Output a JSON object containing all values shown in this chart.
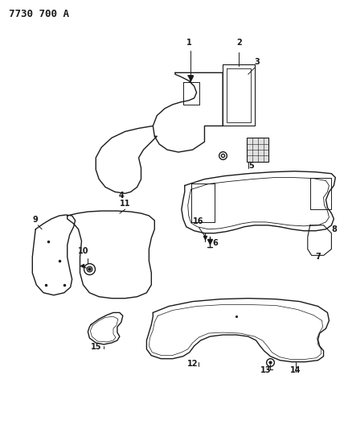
{
  "title": "7730 700 A",
  "bg_color": "#ffffff",
  "line_color": "#1a1a1a",
  "title_fontsize": 9,
  "label_fontsize": 7,
  "figsize": [
    4.28,
    5.33
  ],
  "dpi": 100
}
